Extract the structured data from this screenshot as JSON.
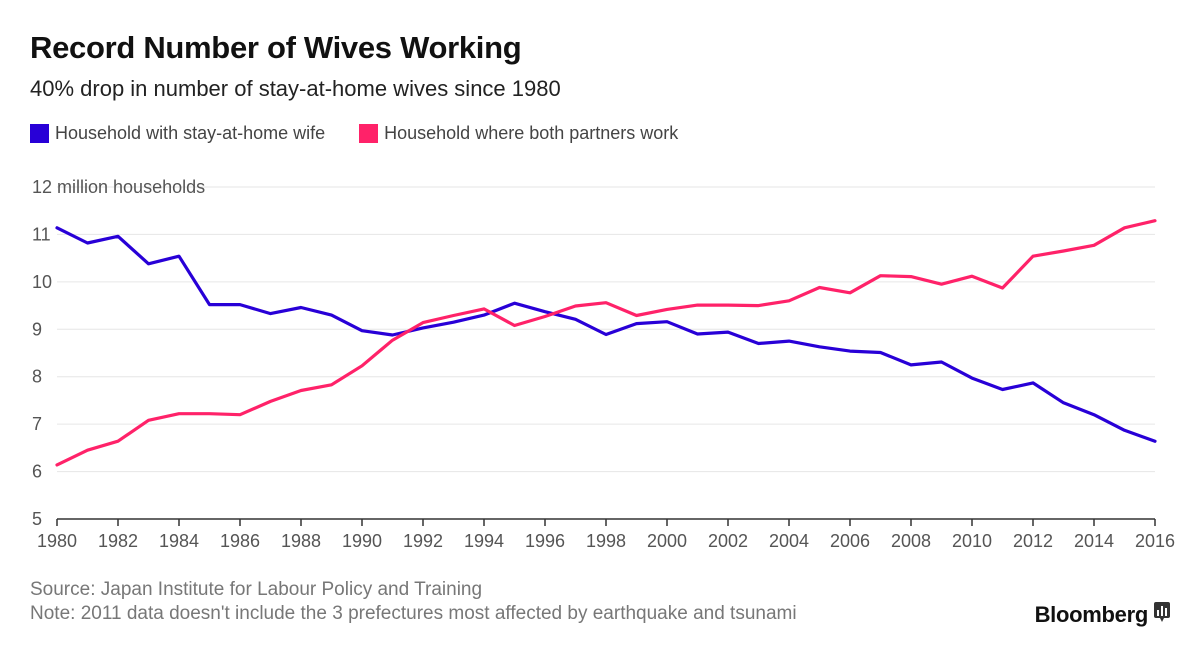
{
  "header": {
    "title": "Record Number of Wives Working",
    "subtitle": "40% drop in number of stay-at-home wives since 1980"
  },
  "footer": {
    "source": "Source: Japan Institute for Labour Policy and Training",
    "note": "Note: 2011 data doesn't include the 3 prefectures most affected by earthquake and tsunami"
  },
  "brand": {
    "name": "Bloomberg",
    "icon": "bloomberg-bar-icon"
  },
  "chart_data": {
    "type": "line",
    "title": "Record Number of Wives Working",
    "subtitle": "40% drop in number of stay-at-home wives since 1980",
    "ylabel": "12 million households",
    "xlim": [
      1980,
      2016
    ],
    "ylim": [
      5,
      12
    ],
    "yticks": [
      5,
      6,
      7,
      8,
      9,
      10,
      11,
      12
    ],
    "xticks": [
      1980,
      1982,
      1984,
      1986,
      1988,
      1990,
      1992,
      1994,
      1996,
      1998,
      2000,
      2002,
      2004,
      2006,
      2008,
      2010,
      2012,
      2014,
      2016
    ],
    "grid": true,
    "legend_position": "top-left",
    "x": [
      1980,
      1981,
      1982,
      1983,
      1984,
      1985,
      1986,
      1987,
      1988,
      1989,
      1990,
      1991,
      1992,
      1993,
      1994,
      1995,
      1996,
      1997,
      1998,
      1999,
      2000,
      2001,
      2002,
      2003,
      2004,
      2005,
      2006,
      2007,
      2008,
      2009,
      2010,
      2011,
      2012,
      2013,
      2014,
      2015,
      2016
    ],
    "series": [
      {
        "name": "Household with stay-at-home wife",
        "color": "#2800d7",
        "values": [
          11.14,
          10.82,
          10.96,
          10.38,
          10.54,
          9.52,
          9.52,
          9.33,
          9.46,
          9.3,
          8.97,
          8.88,
          9.03,
          9.15,
          9.3,
          9.55,
          9.37,
          9.21,
          8.89,
          9.12,
          9.16,
          8.9,
          8.94,
          8.7,
          8.75,
          8.63,
          8.54,
          8.51,
          8.25,
          8.31,
          7.97,
          7.73,
          7.87,
          7.45,
          7.2,
          6.87,
          6.64
        ]
      },
      {
        "name": "Household where both partners work",
        "color": "#ff2269",
        "values": [
          6.14,
          6.45,
          6.64,
          7.08,
          7.22,
          7.22,
          7.2,
          7.48,
          7.71,
          7.83,
          8.23,
          8.77,
          9.14,
          9.29,
          9.43,
          9.08,
          9.27,
          9.49,
          9.56,
          9.29,
          9.42,
          9.51,
          9.51,
          9.5,
          9.6,
          9.88,
          9.77,
          10.13,
          10.11,
          9.95,
          10.12,
          9.87,
          10.54,
          10.65,
          10.77,
          11.14,
          11.29
        ]
      }
    ]
  }
}
